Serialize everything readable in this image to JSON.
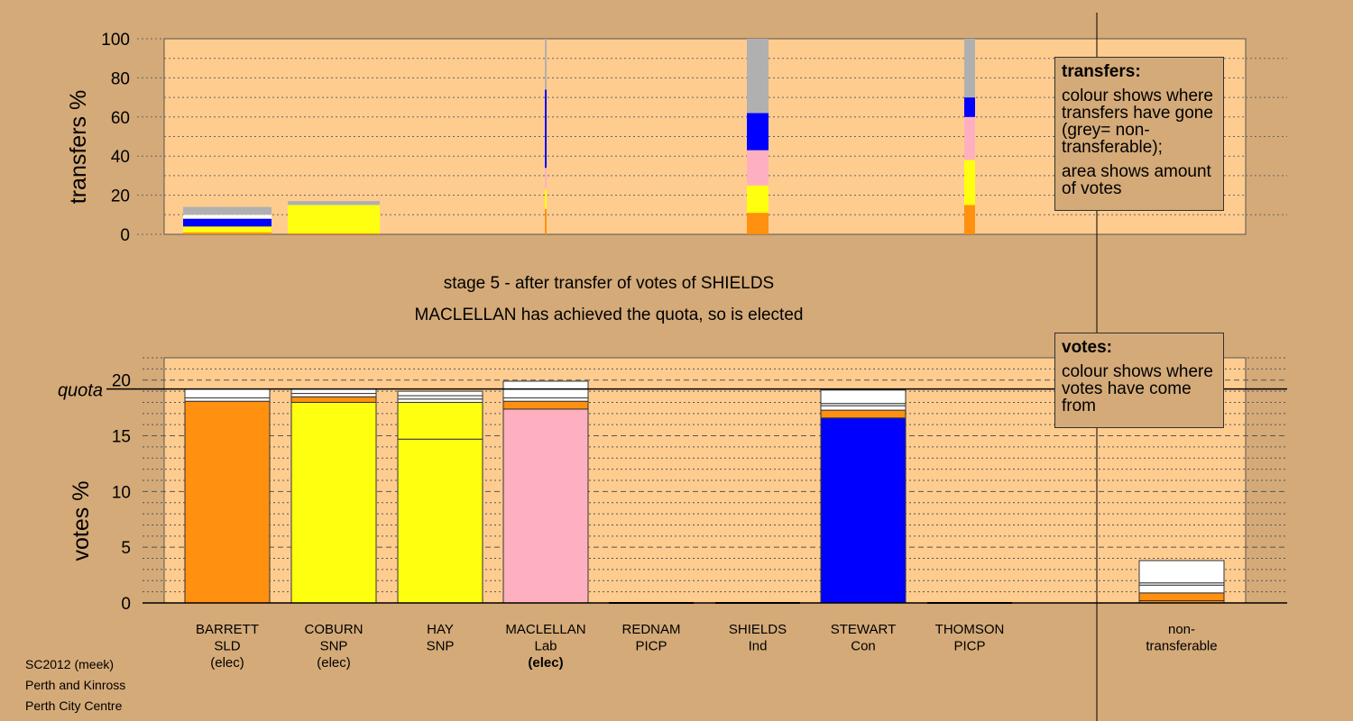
{
  "heading": {
    "line1": "stage 5 - after transfer of votes of SHIELDS",
    "line2": "MACLELLAN has achieved the quota, so is elected"
  },
  "credit": [
    "SC2012 (meek)",
    "Perth and Kinross",
    "Perth City Centre"
  ],
  "legend_transfers": {
    "title": "transfers:",
    "text1": "colour shows where transfers have gone (grey= non-transferable);",
    "text2": "area shows amount of votes"
  },
  "legend_votes": {
    "title": "votes:",
    "text1": "colour shows where votes have come from"
  },
  "colors": {
    "SLD": "#ff9010",
    "SNP": "#ffff10",
    "Lab": "#ffb0c0",
    "Con": "#0000ff",
    "nontransferable": "#b0b0b0",
    "Other": "#ffffff",
    "plot_bg": "#ffcc90",
    "page_bg": "#d4aa78"
  },
  "chart_data": [
    {
      "type": "bar",
      "chart": "transfers",
      "ylabel": "transfers %",
      "ylim": [
        0,
        100
      ],
      "yticks": [
        0,
        20,
        40,
        60,
        80,
        100
      ],
      "columns": [
        {
          "candidate": "BARRETT",
          "segments": [
            {
              "party": "SLD",
              "value": 1
            },
            {
              "party": "SNP",
              "value": 3
            },
            {
              "party": "Con",
              "value": 4
            },
            {
              "party": "Other",
              "value": 2
            },
            {
              "party": "nontransferable",
              "value": 4
            }
          ]
        },
        {
          "candidate": "COBURN",
          "segments": [
            {
              "party": "SLD",
              "value": 0.5
            },
            {
              "party": "SNP",
              "value": 14.5
            },
            {
              "party": "nontransferable",
              "value": 2
            }
          ]
        },
        {
          "candidate": "HAY",
          "segments": []
        },
        {
          "candidate": "MACLELLAN",
          "segments": [
            {
              "party": "SLD",
              "value": 13
            },
            {
              "party": "SNP",
              "value": 10
            },
            {
              "party": "Lab",
              "value": 11
            },
            {
              "party": "Con",
              "value": 40
            },
            {
              "party": "nontransferable",
              "value": 26
            }
          ]
        },
        {
          "candidate": "REDNAM",
          "segments": []
        },
        {
          "candidate": "SHIELDS",
          "segments": [
            {
              "party": "SLD",
              "value": 11
            },
            {
              "party": "SNP",
              "value": 14
            },
            {
              "party": "Lab",
              "value": 18
            },
            {
              "party": "Con",
              "value": 19
            },
            {
              "party": "nontransferable",
              "value": 38
            }
          ]
        },
        {
          "candidate": "STEWART",
          "segments": []
        },
        {
          "candidate": "THOMSON",
          "segments": [
            {
              "party": "SLD",
              "value": 15
            },
            {
              "party": "SNP",
              "value": 23
            },
            {
              "party": "Lab",
              "value": 22
            },
            {
              "party": "Con",
              "value": 10
            },
            {
              "party": "nontransferable",
              "value": 30
            }
          ]
        }
      ]
    },
    {
      "type": "bar",
      "chart": "votes",
      "ylabel": "votes %",
      "ylim": [
        0,
        22
      ],
      "yticks": [
        0,
        5,
        10,
        15,
        20
      ],
      "quota": 19.2,
      "quota_label": "quota",
      "columns": [
        {
          "label": [
            "BARRETT",
            "SLD",
            "(elec)"
          ],
          "bold_status": false,
          "segments": [
            {
              "party": "SLD",
              "value": 18.1
            },
            {
              "party": "Other",
              "value": 0.3
            },
            {
              "party": "Other",
              "value": 0.8
            }
          ]
        },
        {
          "label": [
            "COBURN",
            "SNP",
            "(elec)"
          ],
          "bold_status": false,
          "segments": [
            {
              "party": "SNP",
              "value": 18.0
            },
            {
              "party": "SLD",
              "value": 0.5
            },
            {
              "party": "Other",
              "value": 0.3
            },
            {
              "party": "Other",
              "value": 0.4
            }
          ]
        },
        {
          "label": [
            "HAY",
            "SNP"
          ],
          "bold_status": false,
          "segments": [
            {
              "party": "SNP",
              "value": 14.7
            },
            {
              "party": "SNP",
              "value": 3.3
            },
            {
              "party": "Other",
              "value": 0.3
            },
            {
              "party": "Other",
              "value": 0.3
            },
            {
              "party": "Other",
              "value": 0.4
            }
          ]
        },
        {
          "label": [
            "MACLELLAN",
            "Lab",
            "(elec)"
          ],
          "bold_status": true,
          "segments": [
            {
              "party": "Lab",
              "value": 17.4
            },
            {
              "party": "SLD",
              "value": 0.7
            },
            {
              "party": "Other",
              "value": 0.3
            },
            {
              "party": "Other",
              "value": 0.8
            },
            {
              "party": "Other",
              "value": 0.7
            }
          ]
        },
        {
          "label": [
            "REDNAM",
            "PICP"
          ],
          "bold_status": false,
          "segments": []
        },
        {
          "label": [
            "SHIELDS",
            "Ind"
          ],
          "bold_status": false,
          "segments": []
        },
        {
          "label": [
            "STEWART",
            "Con"
          ],
          "bold_status": false,
          "segments": [
            {
              "party": "Con",
              "value": 16.6
            },
            {
              "party": "SLD",
              "value": 0.7
            },
            {
              "party": "Other",
              "value": 0.4
            },
            {
              "party": "Other",
              "value": 0.2
            },
            {
              "party": "Other",
              "value": 1.2
            }
          ]
        },
        {
          "label": [
            "THOMSON",
            "PICP"
          ],
          "bold_status": false,
          "segments": []
        },
        {
          "label": [
            "non-",
            "transferable"
          ],
          "bold_status": false,
          "segments": [
            {
              "party": "SLD",
              "value": 0.2
            },
            {
              "party": "SLD",
              "value": 0.7
            },
            {
              "party": "Other",
              "value": 0.7
            },
            {
              "party": "Other",
              "value": 0.2
            },
            {
              "party": "Other",
              "value": 2.0
            }
          ]
        }
      ]
    }
  ]
}
